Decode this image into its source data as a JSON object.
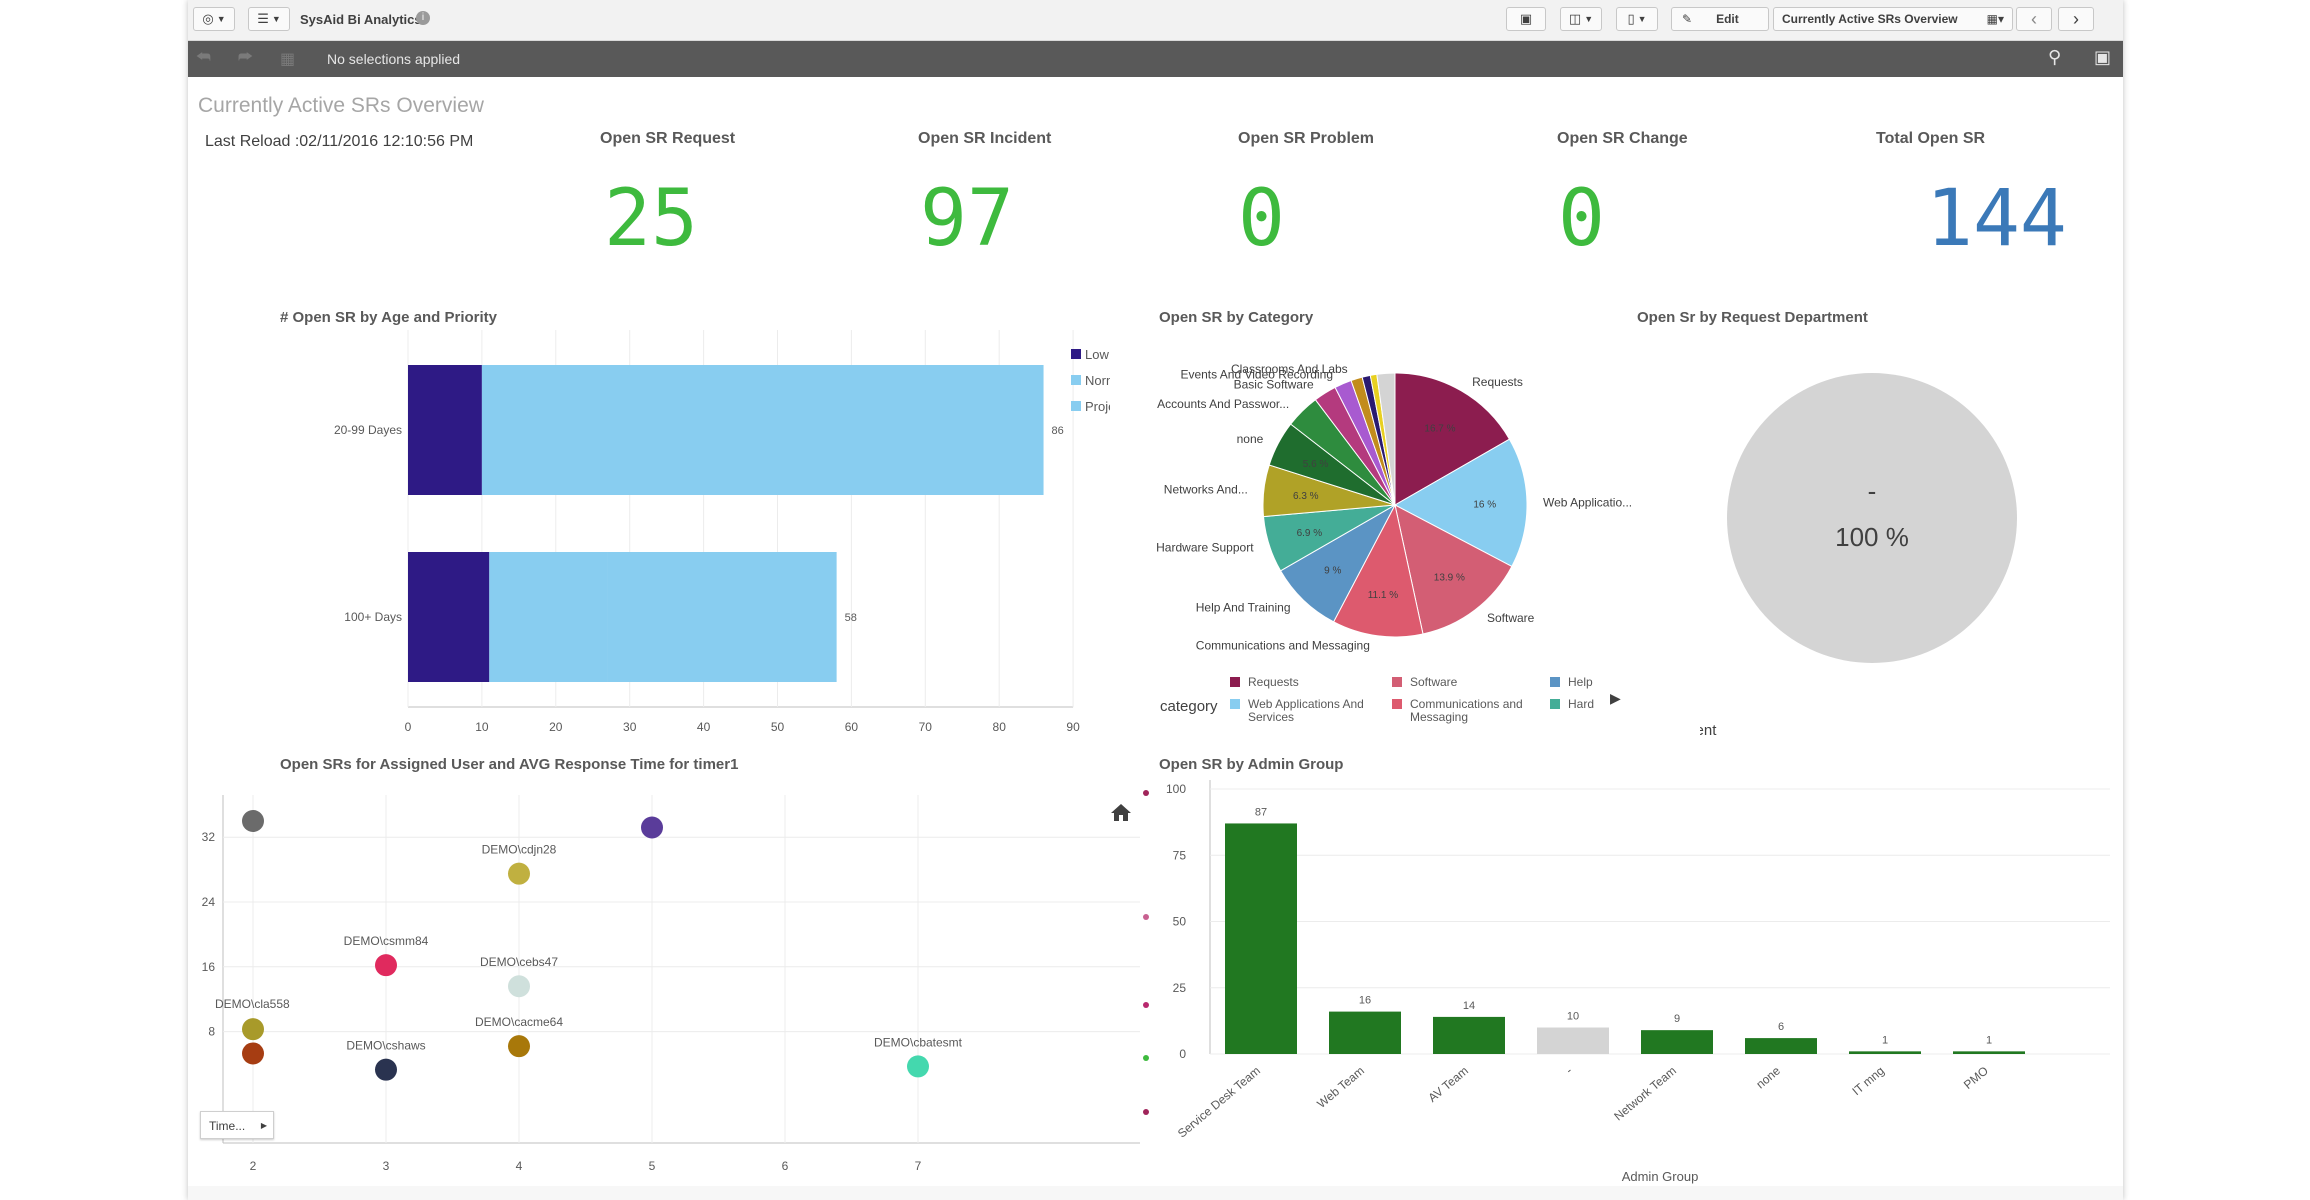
{
  "app": {
    "title": "SysAid Bi Analytics",
    "edit_label": "Edit",
    "sheet_name": "Currently Active SRs Overview"
  },
  "selections": {
    "text": "No selections applied"
  },
  "sheet": {
    "title": "Currently Active SRs Overview",
    "last_reload": "Last Reload :02/11/2016 12:10:56 PM"
  },
  "kpis": [
    {
      "label": "Open SR Request",
      "value": "25",
      "color": "#3eba3e"
    },
    {
      "label": "Open SR Incident",
      "value": "97",
      "color": "#3eba3e"
    },
    {
      "label": "Open SR Problem",
      "value": "0",
      "color": "#3eba3e"
    },
    {
      "label": "Open SR Change",
      "value": "0",
      "color": "#3eba3e"
    },
    {
      "label": "Total Open SR",
      "value": "144",
      "color": "#3b79b8"
    }
  ],
  "colors": {
    "low": "#2e1a85",
    "normal": "#88cdf0",
    "project": "#88cdf0",
    "green": "#217821",
    "grey": "#d4d4d4",
    "kpi_green": "#3eba3e",
    "kpi_blue": "#3b79b8"
  },
  "chart_data": [
    {
      "type": "bar",
      "title": "# Open SR by Age and Priority",
      "orientation": "horizontal",
      "stacked": true,
      "categories": [
        "20-99 Dayes",
        "100+ Days"
      ],
      "series": [
        {
          "name": "Low",
          "values": [
            10,
            11
          ]
        },
        {
          "name": "Normal",
          "values": [
            76,
            16
          ]
        },
        {
          "name": "Project",
          "values": [
            0,
            31
          ]
        }
      ],
      "totals": [
        86,
        58
      ],
      "xlim": [
        0,
        90
      ],
      "xticks": [
        "0",
        "10",
        "20",
        "30",
        "40",
        "50",
        "60",
        "70",
        "80",
        "90"
      ],
      "legend": [
        "Low",
        "Normal",
        "Project"
      ],
      "legend_position": "right"
    },
    {
      "type": "pie",
      "title": "Open SR by Category",
      "legend_title": "category",
      "slices": [
        {
          "label": "Requests",
          "value": 16.7,
          "pct_label": "16.7 %",
          "color": "#8c1d4f"
        },
        {
          "label": "Web Applicatio...",
          "value": 16,
          "pct_label": "16 %",
          "color": "#88cdf0"
        },
        {
          "label": "Software",
          "value": 13.9,
          "pct_label": "13.9 %",
          "color": "#d35e74"
        },
        {
          "label": "Communications and Messaging",
          "value": 11.1,
          "pct_label": "11.1 %",
          "color": "#dd5a6e"
        },
        {
          "label": "Help And Training",
          "value": 9,
          "pct_label": "9 %",
          "color": "#5b94c4"
        },
        {
          "label": "Hardware Support",
          "value": 6.9,
          "pct_label": "6.9 %",
          "color": "#44ad97"
        },
        {
          "label": "Networks And...",
          "value": 6.3,
          "pct_label": "6.3 %",
          "color": "#b0a227"
        },
        {
          "label": "none",
          "value": 5.6,
          "pct_label": "5.6 %",
          "color": "#1f6d2e"
        },
        {
          "label": "Accounts And Passwor...",
          "value": 4.2,
          "pct_label": "",
          "color": "#2e8c3e"
        },
        {
          "label": "Basic Software",
          "value": 2.8,
          "pct_label": "",
          "color": "#b43a7e"
        },
        {
          "label": "Events And Video Recording",
          "value": 2.1,
          "pct_label": "",
          "color": "#a85ad0"
        },
        {
          "label": "Classrooms And Labs",
          "value": 1.4,
          "pct_label": "",
          "color": "#c28c1c"
        },
        {
          "label": "",
          "value": 1.0,
          "pct_label": "",
          "color": "#2a1a70"
        },
        {
          "label": "",
          "value": 0.8,
          "pct_label": "",
          "color": "#e8d020"
        },
        {
          "label": "",
          "value": 2.2,
          "pct_label": "",
          "color": "#d4d4d4"
        }
      ],
      "legend_items": [
        {
          "label": "Requests",
          "color": "#8c1d4f"
        },
        {
          "label": "Web Applications And Services",
          "color": "#88cdf0"
        },
        {
          "label": "Software",
          "color": "#d35e74"
        },
        {
          "label": "Communications and Messaging",
          "color": "#dd5a6e"
        },
        {
          "label": "Help",
          "color": "#5b94c4"
        },
        {
          "label": "Hard",
          "color": "#44ad97"
        }
      ]
    },
    {
      "type": "pie",
      "title": "Open Sr by Request Department",
      "slices": [
        {
          "label": "-",
          "value": 100,
          "pct_label": "100 %",
          "color": "#d4d4d4"
        }
      ],
      "legend_title": "Request Department"
    },
    {
      "type": "scatter",
      "title": "Open SRs for Assigned User and AVG Response Time for timer1",
      "xticks": [
        "2",
        "3",
        "4",
        "5",
        "6",
        "7"
      ],
      "yticks": [
        "8",
        "16",
        "24",
        "32"
      ],
      "xlim": [
        1.7,
        7.85
      ],
      "ylim": [
        1,
        36
      ],
      "points": [
        {
          "label": "",
          "x": 2.0,
          "y": 34,
          "color": "#6b6b6b"
        },
        {
          "label": "",
          "x": 5.0,
          "y": 33.2,
          "color": "#5a3c9a"
        },
        {
          "label": "DEMO\\cdjn28",
          "x": 4.0,
          "y": 27.5,
          "color": "#c0b040"
        },
        {
          "label": "DEMO\\csmm84",
          "x": 3.0,
          "y": 16.2,
          "color": "#e02a5e"
        },
        {
          "label": "DEMO\\cebs47",
          "x": 4.0,
          "y": 13.6,
          "color": "#cfe0dc"
        },
        {
          "label": "DEMO\\cla558",
          "x": 2.0,
          "y": 8.3,
          "color": "#a89a2a"
        },
        {
          "label": "",
          "x": 2.0,
          "y": 5.3,
          "color": "#a63d12"
        },
        {
          "label": "DEMO\\cacme64",
          "x": 4.0,
          "y": 6.2,
          "color": "#a8780a"
        },
        {
          "label": "DEMO\\cshaws",
          "x": 3.0,
          "y": 3.3,
          "color": "#2a3350"
        },
        {
          "label": "DEMO\\cbatesmt",
          "x": 7.0,
          "y": 3.7,
          "color": "#44d8ae"
        }
      ],
      "range_button": "Time..."
    },
    {
      "type": "bar",
      "title": "Open SR by Admin Group",
      "xlabel": "Admin Group",
      "categories": [
        "Service Desk Team",
        "Web Team",
        "AV Team",
        "-",
        "Network Team",
        "none",
        "IT mng",
        "PMO"
      ],
      "values": [
        87,
        16,
        14,
        10,
        9,
        6,
        1,
        1
      ],
      "value_labels": [
        "87",
        "16",
        "14",
        "10",
        "9",
        "6",
        "1",
        "1"
      ],
      "colors": [
        "#217821",
        "#217821",
        "#217821",
        "#d4d4d4",
        "#217821",
        "#217821",
        "#217821",
        "#217821"
      ],
      "ylim": [
        0,
        100
      ],
      "yticks": [
        "0",
        "25",
        "50",
        "75",
        "100"
      ]
    }
  ]
}
